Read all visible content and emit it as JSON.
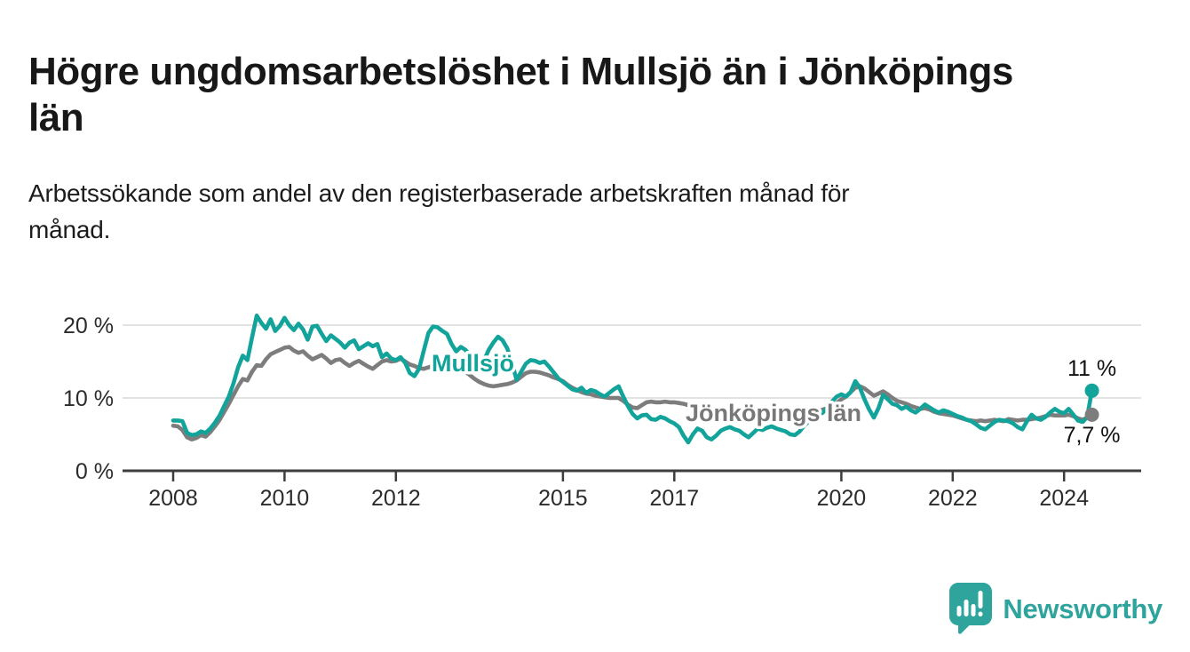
{
  "title": {
    "lines": [
      "Högre ungdomsarbetslöshet i Mullsjö än i Jönköpings",
      "län"
    ]
  },
  "subtitle": {
    "lines": [
      "Arbetssökande som andel av den registerbaserade arbetskraften månad för",
      "månad."
    ]
  },
  "logo": {
    "name": "Newsworthy",
    "icon": "bar-chart-speech-bubble-icon",
    "color": "#2fa49c"
  },
  "chart_data": {
    "type": "line",
    "x_start_year": 2008,
    "x_start_month": 1,
    "x_frequency": "monthly",
    "x_ticks": [
      2008,
      2010,
      2012,
      2015,
      2017,
      2020,
      2022,
      2024
    ],
    "y_ticks": [
      {
        "value": 0,
        "label": "0 %"
      },
      {
        "value": 10,
        "label": "10 %"
      },
      {
        "value": 20,
        "label": "20 %"
      }
    ],
    "ylim": [
      0,
      22.5
    ],
    "grid": "horizontal-only",
    "legend_position": "inline-labels",
    "colors": {
      "mullsjo": "#12a39a",
      "jonkopings_lan": "#7d7d7d",
      "grid": "#dadada",
      "axis": "#3d3d3d",
      "annotation": "#111111"
    },
    "series": [
      {
        "name": "Mullsjö",
        "color": "#12a39a",
        "label_color": "#12a39a",
        "end_label": "11 %",
        "end_label_side": "above",
        "values": [
          6.9,
          6.9,
          6.8,
          5.2,
          4.9,
          5.0,
          5.4,
          5.2,
          5.8,
          6.6,
          7.6,
          8.9,
          10.2,
          12.0,
          14.2,
          15.8,
          15.2,
          18.3,
          21.3,
          20.3,
          19.5,
          20.8,
          19.2,
          19.9,
          21.0,
          20.0,
          19.3,
          20.2,
          19.4,
          18.0,
          19.8,
          19.9,
          18.8,
          17.8,
          18.6,
          18.1,
          17.6,
          16.9,
          17.6,
          17.9,
          16.7,
          17.1,
          17.5,
          17.1,
          17.4,
          15.6,
          16.1,
          15.4,
          15.2,
          15.6,
          14.8,
          13.4,
          13.0,
          14.0,
          16.5,
          18.9,
          19.8,
          19.7,
          19.2,
          18.8,
          17.4,
          16.4,
          17.0,
          16.6,
          15.8,
          14.9,
          14.4,
          15.2,
          16.6,
          17.6,
          18.4,
          17.9,
          16.8,
          14.8,
          12.5,
          13.6,
          14.7,
          15.2,
          15.1,
          14.8,
          15.0,
          14.3,
          13.5,
          12.7,
          12.2,
          11.7,
          11.2,
          11.0,
          11.4,
          10.7,
          11.1,
          10.9,
          10.5,
          10.2,
          10.7,
          11.2,
          11.6,
          10.2,
          8.9,
          7.8,
          7.2,
          7.6,
          7.7,
          7.1,
          7.0,
          7.4,
          7.2,
          6.8,
          6.5,
          6.0,
          4.8,
          3.9,
          5.0,
          5.8,
          5.5,
          4.6,
          4.3,
          4.8,
          5.5,
          5.8,
          6.0,
          5.7,
          5.5,
          5.0,
          4.6,
          5.2,
          5.8,
          5.6,
          5.9,
          6.1,
          5.8,
          5.6,
          5.4,
          5.0,
          4.9,
          5.4,
          6.2,
          6.8,
          7.3,
          7.6,
          8.0,
          8.7,
          9.5,
          10.2,
          10.5,
          10.2,
          10.8,
          12.3,
          11.4,
          9.8,
          8.4,
          7.3,
          8.6,
          10.4,
          9.8,
          9.2,
          9.0,
          8.5,
          8.8,
          8.3,
          8.0,
          8.5,
          9.1,
          8.7,
          8.3,
          8.0,
          8.3,
          8.1,
          7.8,
          7.5,
          7.3,
          7.0,
          6.8,
          6.4,
          5.9,
          5.7,
          6.2,
          6.7,
          7.0,
          6.9,
          6.8,
          6.5,
          6.0,
          5.7,
          6.8,
          7.7,
          7.2,
          7.0,
          7.4,
          8.0,
          8.5,
          8.1,
          7.9,
          8.5,
          7.7,
          6.9,
          6.7,
          7.4,
          11.0
        ]
      },
      {
        "name": "Jönköpings län",
        "color": "#7d7d7d",
        "label_color": "#787878",
        "end_label": "7,7 %",
        "end_label_side": "below",
        "values": [
          6.2,
          6.1,
          5.6,
          4.6,
          4.3,
          4.5,
          4.9,
          4.7,
          5.3,
          6.1,
          7.0,
          8.1,
          9.2,
          10.4,
          11.6,
          12.6,
          12.4,
          13.6,
          14.5,
          14.4,
          15.3,
          16.0,
          16.3,
          16.6,
          16.9,
          17.0,
          16.5,
          16.2,
          16.4,
          15.8,
          15.3,
          15.6,
          15.9,
          15.4,
          14.8,
          15.2,
          15.3,
          14.8,
          14.4,
          14.8,
          15.1,
          14.7,
          14.3,
          14.0,
          14.5,
          15.0,
          15.2,
          15.0,
          15.1,
          15.4,
          15.0,
          14.6,
          14.4,
          14.1,
          14.0,
          14.2,
          14.4,
          14.5,
          14.6,
          14.5,
          14.6,
          14.3,
          14.0,
          13.6,
          13.1,
          12.6,
          12.2,
          11.9,
          11.7,
          11.6,
          11.7,
          11.8,
          11.9,
          12.1,
          12.4,
          12.9,
          13.4,
          13.6,
          13.6,
          13.5,
          13.3,
          13.1,
          12.8,
          12.6,
          12.3,
          11.8,
          11.4,
          11.1,
          10.8,
          10.6,
          10.5,
          10.3,
          10.2,
          10.1,
          10.0,
          10.0,
          10.0,
          9.6,
          9.1,
          8.7,
          8.6,
          9.0,
          9.4,
          9.5,
          9.4,
          9.4,
          9.5,
          9.4,
          9.4,
          9.3,
          9.2,
          9.0,
          8.9,
          8.8,
          8.7,
          8.6,
          8.5,
          8.4,
          8.3,
          8.2,
          8.1,
          8.0,
          7.9,
          7.8,
          7.7,
          7.7,
          7.8,
          7.7,
          7.6,
          7.5,
          7.5,
          7.6,
          7.6,
          7.5,
          7.5,
          7.6,
          7.7,
          7.9,
          8.1,
          8.2,
          8.4,
          8.6,
          8.9,
          9.3,
          9.8,
          10.2,
          10.8,
          11.4,
          11.6,
          11.3,
          10.8,
          10.3,
          10.6,
          10.9,
          10.5,
          10.0,
          9.6,
          9.4,
          9.2,
          8.9,
          8.7,
          8.5,
          8.6,
          8.4,
          8.1,
          7.9,
          7.8,
          7.7,
          7.6,
          7.4,
          7.2,
          7.0,
          6.9,
          6.8,
          6.9,
          6.8,
          6.9,
          7.0,
          6.9,
          6.8,
          7.1,
          7.0,
          6.9,
          7.0,
          7.0,
          7.1,
          7.2,
          7.3,
          7.5,
          7.7,
          7.6,
          7.6,
          7.6,
          7.7,
          7.5,
          7.2,
          7.0,
          7.3,
          7.7
        ]
      }
    ]
  }
}
